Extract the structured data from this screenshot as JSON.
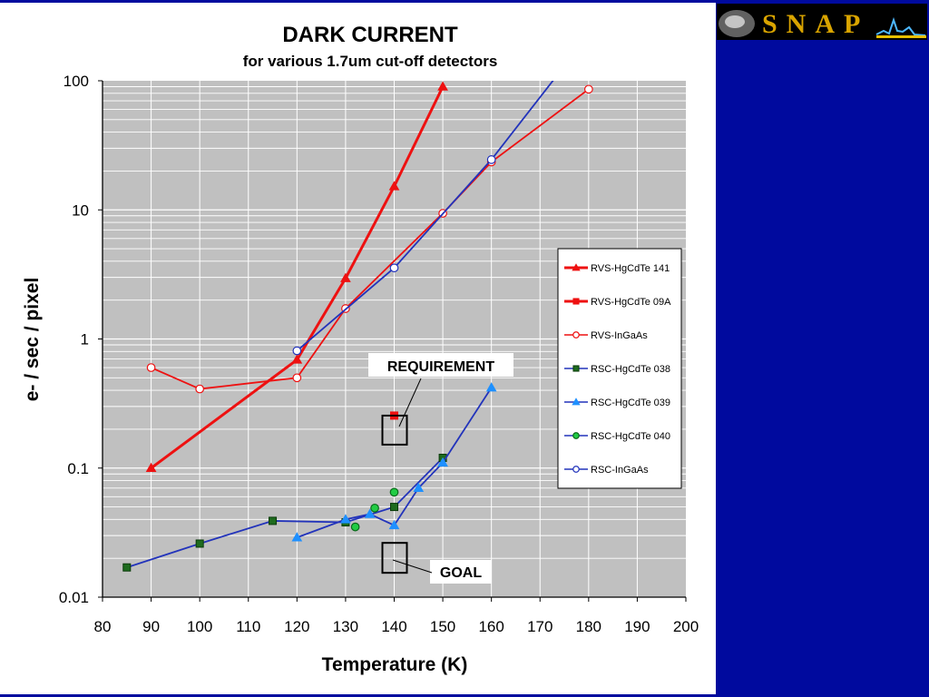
{
  "slide": {
    "background_color": "#000a9e",
    "logo_text": "SNAP",
    "logo_color": "#d9a400"
  },
  "chart_data": {
    "type": "scatter",
    "title": "DARK CURRENT",
    "subtitle": "for various 1.7um cut-off detectors",
    "xlabel": "Temperature (K)",
    "ylabel": "e- / sec / pixel",
    "xlim": [
      80,
      200
    ],
    "ylim": [
      0.01,
      100
    ],
    "yscale": "log",
    "xticks": [
      "80",
      "90",
      "100",
      "110",
      "120",
      "130",
      "140",
      "150",
      "160",
      "170",
      "180",
      "190",
      "200"
    ],
    "yticks": [
      "0.01",
      "0.1",
      "1",
      "10",
      "100"
    ],
    "plot_background": "#c0c0c0",
    "grid": true,
    "legend_position": "right",
    "series": [
      {
        "name": "RVS-HgCdTe 141",
        "color": "#ee1111",
        "marker": "triangle",
        "filled": true,
        "line": true,
        "thick": true,
        "x": [
          90,
          120,
          130,
          140,
          150
        ],
        "y": [
          0.1,
          0.69,
          2.95,
          15.2,
          90
        ]
      },
      {
        "name": "RVS-HgCdTe 09A",
        "color": "#ee1111",
        "marker": "square",
        "filled": true,
        "line": true,
        "thick": true,
        "x": [
          140
        ],
        "y": [
          0.255
        ]
      },
      {
        "name": "RVS-InGaAs",
        "color": "#ee1111",
        "marker": "circle",
        "filled": false,
        "line": true,
        "thick": false,
        "x": [
          90,
          100,
          120,
          130,
          150,
          160,
          180
        ],
        "y": [
          0.6,
          0.41,
          0.5,
          1.72,
          9.4,
          23.5,
          86
        ]
      },
      {
        "name": "RSC-HgCdTe 038",
        "color": "#2233bb",
        "marker": "square",
        "fill": "#1e6b1e",
        "filled": true,
        "line": true,
        "thick": false,
        "x": [
          85,
          100,
          115,
          130,
          140,
          150
        ],
        "y": [
          0.017,
          0.026,
          0.039,
          0.038,
          0.05,
          0.12
        ]
      },
      {
        "name": "RSC-HgCdTe 039",
        "color": "#2233bb",
        "marker": "triangle",
        "fill": "#1e90ff",
        "filled": true,
        "line": true,
        "thick": false,
        "x": [
          120,
          130,
          135,
          140,
          145,
          150,
          160
        ],
        "y": [
          0.029,
          0.04,
          0.044,
          0.036,
          0.07,
          0.11,
          0.42
        ]
      },
      {
        "name": "RSC-HgCdTe 040",
        "color": "#2233bb",
        "marker": "circle",
        "fill": "#22cc44",
        "filled": true,
        "line": false,
        "thick": false,
        "x": [
          132,
          136,
          140
        ],
        "y": [
          0.035,
          0.049,
          0.065
        ]
      },
      {
        "name": "RSC-InGaAs",
        "color": "#2233bb",
        "marker": "circle",
        "filled": false,
        "line": true,
        "thick": false,
        "x": [
          120,
          140,
          160,
          175
        ],
        "y": [
          0.81,
          3.55,
          24.5,
          130
        ]
      }
    ],
    "annotations": [
      {
        "label": "REQUIREMENT",
        "target_x": 140,
        "target_y": 0.2
      },
      {
        "label": "GOAL",
        "target_x": 140,
        "target_y": 0.02
      }
    ]
  }
}
